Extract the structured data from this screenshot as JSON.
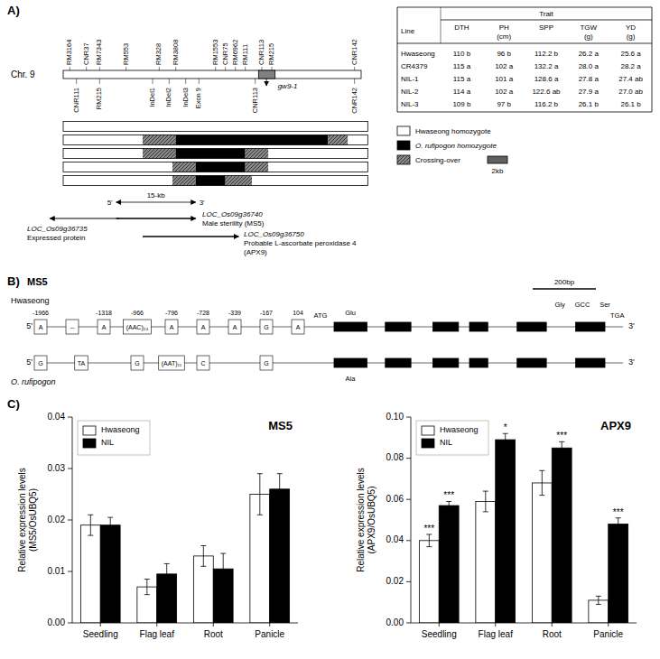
{
  "chart_data": [
    {
      "type": "diagram",
      "annotations": [
        "A)",
        "Chr. 9",
        "gw9-1",
        "RM3164",
        "CNR37",
        "RM7343",
        "RM553",
        "RM328",
        "RM3808",
        "RM1553",
        "CNR75",
        "RM6962",
        "RM111",
        "CNR113",
        "RM215",
        "CNR142",
        "CNR111",
        "RM215",
        "InDel1",
        "InDel2",
        "InDel3",
        "Exon 9",
        "CNR113",
        "CNR142",
        "15-kb",
        "5'",
        "3'",
        "LOC_Os09g36735",
        "Expressed protein",
        "LOC_Os09g36740",
        "Male sterility (MS5)",
        "LOC_Os09g36750",
        "Probable L-ascorbate peroxidase 4",
        "(APX9)",
        "Hwaseong homozygote",
        "O. rufipogon homozygote",
        "Crossing-over",
        "2kb",
        "Trait",
        "Line",
        "DTH",
        "PH\n(cm)",
        "SPP",
        "TGW\n(g)",
        "YD\n(g)",
        "Hwaseong",
        "110 b",
        "96 b",
        "112.2 b",
        "26.2 a",
        "25.6 a",
        "CR4379",
        "115 a",
        "102 a",
        "132.2 a",
        "28.0 a",
        "28.2 a",
        "NIL-1",
        "115 a",
        "101 a",
        "128.6 a",
        "27.8 a",
        "27.4 ab",
        "NIL-2",
        "114 a",
        "102 a",
        "122.6 ab",
        "27.9 a",
        "27.0 ab",
        "NIL-3",
        "109 b",
        "97 b",
        "116.2 b",
        "26.1 b",
        "26.1 b"
      ]
    },
    {
      "type": "diagram",
      "annotations": [
        "B)",
        "200bp",
        "MS5",
        "Hwaseong",
        "5'",
        "3'",
        "ATG",
        "TGA",
        "A",
        "--",
        "A",
        "(AAC)₂₄",
        "A",
        "A",
        "A",
        "G",
        "A",
        "-1966",
        "-1318",
        "-966",
        "-796",
        "-728",
        "-339",
        "-167",
        "104",
        "O. rufipogon",
        "5'",
        "3'",
        "G",
        "TA",
        "G",
        "(AAT)₁₁",
        "C",
        "G",
        "Glu",
        "Ala",
        "Gly",
        "GCC",
        "Ser"
      ]
    },
    {
      "type": "bar",
      "title": "MS5",
      "y_label": "Relative expression levels\n(MS5/OsUBQ5)",
      "categories": [
        "Seedling",
        "Flag leaf",
        "Root",
        "Panicle"
      ],
      "series": [
        {
          "name": "Hwaseong",
          "color": "#ffffff",
          "values": [
            0.019,
            0.007,
            0.013,
            0.025
          ],
          "errors": [
            0.002,
            0.0015,
            0.002,
            0.004
          ]
        },
        {
          "name": "NIL",
          "color": "#000000",
          "values": [
            0.019,
            0.0095,
            0.0105,
            0.026
          ],
          "errors": [
            0.0015,
            0.002,
            0.003,
            0.003
          ]
        }
      ],
      "ylim": [
        0,
        0.04
      ],
      "yticks": [
        {
          "value": 0,
          "label": "0.00"
        },
        0.01,
        0.02,
        0.03,
        0.04
      ],
      "legend": "upper left",
      "grid": false,
      "annotations": [
        "C)"
      ]
    },
    {
      "type": "bar",
      "title": "APX9",
      "y_label": "Relative expression levels\n(APX9/OsUBQ5)",
      "categories": [
        "Seedling",
        "Flag leaf",
        "Root",
        "Panicle"
      ],
      "series": [
        {
          "name": "Hwaseong",
          "color": "#ffffff",
          "values": [
            0.04,
            0.059,
            0.068,
            0.011
          ],
          "errors": [
            0.003,
            0.005,
            0.006,
            0.002
          ]
        },
        {
          "name": "NIL",
          "color": "#000000",
          "values": [
            0.057,
            0.089,
            0.085,
            0.048
          ],
          "errors": [
            0.002,
            0.003,
            0.003,
            0.003
          ]
        }
      ],
      "ylim": [
        0,
        0.1
      ],
      "yticks": [
        {
          "value": 0,
          "label": "0.00"
        },
        0.02,
        0.04,
        0.06,
        0.08,
        {
          "value": 0.1,
          "label": "0.10"
        }
      ],
      "legend": "upper left",
      "grid": false,
      "annotations": [
        "***",
        "*",
        "***",
        "***",
        "***"
      ]
    }
  ]
}
